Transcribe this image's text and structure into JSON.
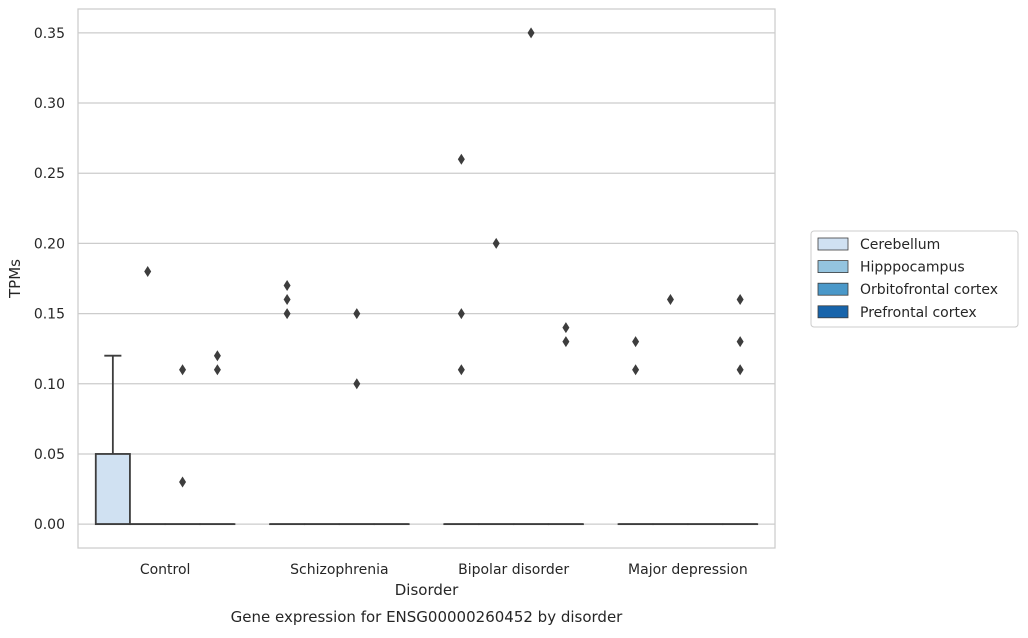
{
  "chart_data": {
    "type": "box",
    "title": "",
    "caption": "Gene expression for ENSG00000260452 by disorder",
    "xlabel": "Disorder",
    "ylabel": "TPMs",
    "ylim": [
      -0.017,
      0.367
    ],
    "yticks": [
      0.0,
      0.05,
      0.1,
      0.15,
      0.2,
      0.25,
      0.3,
      0.35
    ],
    "ytick_labels": [
      "0.00",
      "0.05",
      "0.10",
      "0.15",
      "0.20",
      "0.25",
      "0.30",
      "0.35"
    ],
    "categories": [
      "Control",
      "Schizophrenia",
      "Bipolar disorder",
      "Major depression"
    ],
    "grid": "horizontal",
    "legend_position": "right",
    "series": [
      {
        "name": "Cerebellum",
        "color": "#d0e1f2",
        "boxes": [
          {
            "q1": 0.0,
            "median": 0.0,
            "q3": 0.05,
            "whisker_low": 0.0,
            "whisker_high": 0.12,
            "outliers": []
          },
          {
            "q1": 0.0,
            "median": 0.0,
            "q3": 0.0,
            "whisker_low": 0.0,
            "whisker_high": 0.0,
            "outliers": [
              0.15,
              0.16,
              0.17
            ]
          },
          {
            "q1": 0.0,
            "median": 0.0,
            "q3": 0.0,
            "whisker_low": 0.0,
            "whisker_high": 0.0,
            "outliers": [
              0.11,
              0.15,
              0.26
            ]
          },
          {
            "q1": 0.0,
            "median": 0.0,
            "q3": 0.0,
            "whisker_low": 0.0,
            "whisker_high": 0.0,
            "outliers": [
              0.11,
              0.13
            ]
          }
        ]
      },
      {
        "name": "Hipppocampus",
        "color": "#94c4df",
        "boxes": [
          {
            "q1": 0.0,
            "median": 0.0,
            "q3": 0.0,
            "whisker_low": 0.0,
            "whisker_high": 0.0,
            "outliers": [
              0.18
            ]
          },
          {
            "q1": 0.0,
            "median": 0.0,
            "q3": 0.0,
            "whisker_low": 0.0,
            "whisker_high": 0.0,
            "outliers": []
          },
          {
            "q1": 0.0,
            "median": 0.0,
            "q3": 0.0,
            "whisker_low": 0.0,
            "whisker_high": 0.0,
            "outliers": [
              0.2
            ]
          },
          {
            "q1": 0.0,
            "median": 0.0,
            "q3": 0.0,
            "whisker_low": 0.0,
            "whisker_high": 0.0,
            "outliers": [
              0.16
            ]
          }
        ]
      },
      {
        "name": "Orbitofrontal cortex",
        "color": "#4a98c9",
        "boxes": [
          {
            "q1": 0.0,
            "median": 0.0,
            "q3": 0.0,
            "whisker_low": 0.0,
            "whisker_high": 0.0,
            "outliers": [
              0.03,
              0.11
            ]
          },
          {
            "q1": 0.0,
            "median": 0.0,
            "q3": 0.0,
            "whisker_low": 0.0,
            "whisker_high": 0.0,
            "outliers": [
              0.1,
              0.15
            ]
          },
          {
            "q1": 0.0,
            "median": 0.0,
            "q3": 0.0,
            "whisker_low": 0.0,
            "whisker_high": 0.0,
            "outliers": [
              0.35
            ]
          },
          {
            "q1": 0.0,
            "median": 0.0,
            "q3": 0.0,
            "whisker_low": 0.0,
            "whisker_high": 0.0,
            "outliers": []
          }
        ]
      },
      {
        "name": "Prefrontal cortex",
        "color": "#1764ab",
        "boxes": [
          {
            "q1": 0.0,
            "median": 0.0,
            "q3": 0.0,
            "whisker_low": 0.0,
            "whisker_high": 0.0,
            "outliers": [
              0.11,
              0.12
            ]
          },
          {
            "q1": 0.0,
            "median": 0.0,
            "q3": 0.0,
            "whisker_low": 0.0,
            "whisker_high": 0.0,
            "outliers": []
          },
          {
            "q1": 0.0,
            "median": 0.0,
            "q3": 0.0,
            "whisker_low": 0.0,
            "whisker_high": 0.0,
            "outliers": [
              0.13,
              0.14
            ]
          },
          {
            "q1": 0.0,
            "median": 0.0,
            "q3": 0.0,
            "whisker_low": 0.0,
            "whisker_high": 0.0,
            "outliers": [
              0.11,
              0.13,
              0.16
            ]
          }
        ]
      }
    ]
  }
}
